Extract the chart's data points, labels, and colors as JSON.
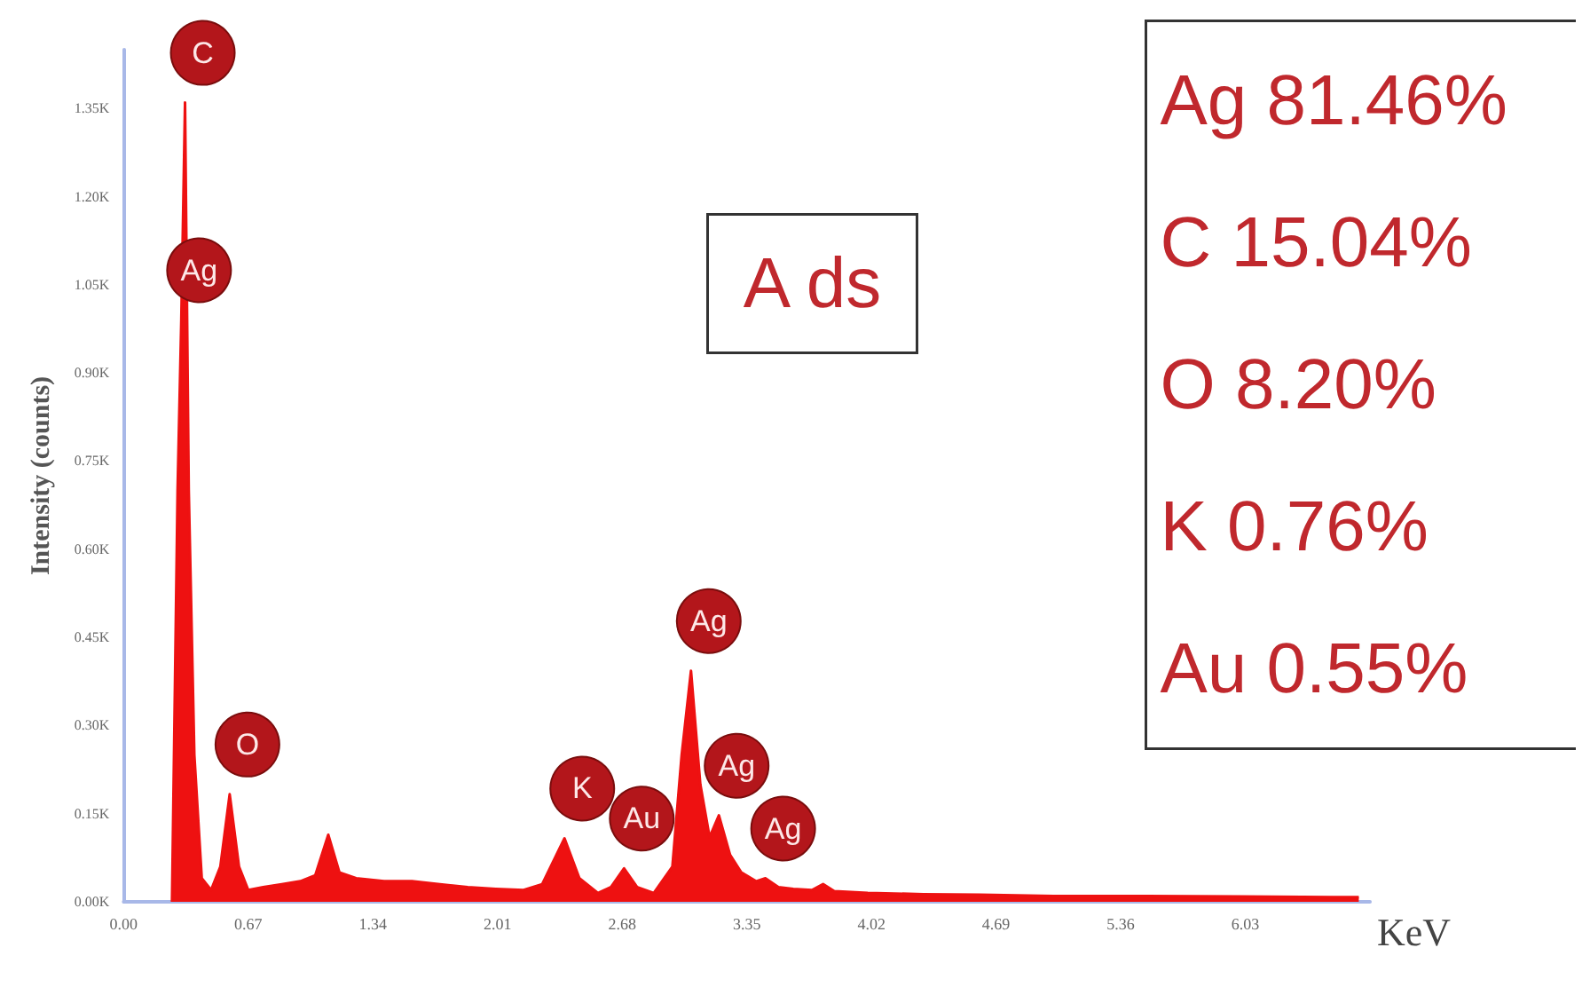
{
  "chart_data": {
    "type": "area",
    "title": "A ds",
    "xlabel": "KeV",
    "ylabel": "Intensity (counts)",
    "x": [
      0.26,
      0.29,
      0.31,
      0.33,
      0.35,
      0.38,
      0.42,
      0.47,
      0.52,
      0.57,
      0.62,
      0.67,
      0.75,
      0.85,
      0.95,
      1.03,
      1.1,
      1.16,
      1.25,
      1.4,
      1.55,
      1.7,
      1.85,
      2.0,
      2.15,
      2.25,
      2.37,
      2.45,
      2.55,
      2.62,
      2.69,
      2.76,
      2.85,
      2.95,
      3.0,
      3.05,
      3.1,
      3.15,
      3.2,
      3.26,
      3.32,
      3.4,
      3.45,
      3.52,
      3.6,
      3.7,
      3.76,
      3.82,
      4.0,
      4.3,
      4.6,
      5.0,
      5.5,
      6.0,
      6.5,
      6.64
    ],
    "series": [
      {
        "color": "#ee1111",
        "values": [
          0,
          700,
          990,
          1360,
          700,
          250,
          40,
          20,
          60,
          183,
          60,
          20,
          25,
          30,
          35,
          45,
          114,
          50,
          40,
          35,
          35,
          30,
          25,
          22,
          20,
          30,
          108,
          40,
          15,
          25,
          57,
          25,
          15,
          60,
          250,
          393,
          200,
          110,
          147,
          80,
          50,
          35,
          40,
          25,
          22,
          20,
          30,
          18,
          15,
          13,
          12,
          10,
          10,
          9,
          8,
          8
        ]
      }
    ],
    "annotations": [
      {
        "text": "C",
        "x": 0.33,
        "y": 1360
      },
      {
        "text": "Ag",
        "x": 0.31,
        "y": 990
      },
      {
        "text": "O",
        "x": 0.57,
        "y": 183
      },
      {
        "text": "K",
        "x": 2.37,
        "y": 108
      },
      {
        "text": "Au",
        "x": 2.69,
        "y": 57
      },
      {
        "text": "Ag",
        "x": 3.05,
        "y": 393
      },
      {
        "text": "Ag",
        "x": 3.2,
        "y": 147
      },
      {
        "text": "Ag",
        "x": 3.45,
        "y": 40
      },
      "Ag 81.46%",
      "C 15.04%",
      "O 8.20%",
      "K 0.76%",
      "Au 0.55%"
    ],
    "xlim": [
      0,
      6.7
    ],
    "xticks": [
      {
        "value": 0,
        "label": "0.00"
      },
      0.67,
      1.34,
      2.01,
      2.68,
      3.35,
      4.02,
      4.69,
      5.36,
      6.03
    ],
    "ylim": [
      0,
      1450
    ],
    "yticks": [
      {
        "value": 0,
        "label": "0.00K"
      },
      {
        "value": 150,
        "label": "0.15K"
      },
      {
        "value": 300,
        "label": "0.30K"
      },
      {
        "value": 450,
        "label": "0.45K"
      },
      {
        "value": 600,
        "label": "0.60K"
      },
      {
        "value": 750,
        "label": "0.75K"
      },
      {
        "value": 900,
        "label": "0.90K"
      },
      {
        "value": 1050,
        "label": "1.05K"
      },
      {
        "value": 1200,
        "label": "1.20K"
      },
      {
        "value": 1350,
        "label": "1.35K"
      }
    ],
    "grid": false,
    "marker": "none"
  }
}
